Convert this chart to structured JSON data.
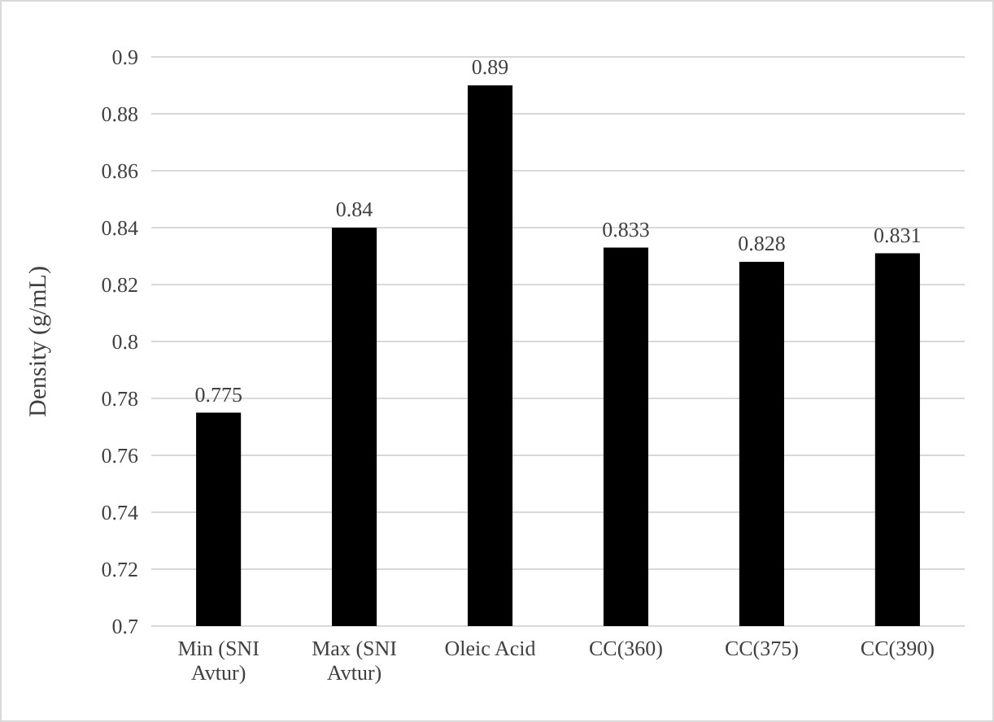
{
  "chart_data": {
    "type": "bar",
    "ylabel": "Density (g/mL)",
    "categories": [
      "Min (SNI Avtur)",
      "Max (SNI Avtur)",
      "Oleic Acid",
      "CC(360)",
      "CC(375)",
      "CC(390)"
    ],
    "values": [
      0.775,
      0.84,
      0.89,
      0.833,
      0.828,
      0.831
    ],
    "color": "#000000",
    "ylim": [
      0.7,
      0.9
    ],
    "yticks": [
      0.7,
      0.72,
      0.74,
      0.76,
      0.78,
      0.8,
      0.82,
      0.84,
      0.86,
      0.88,
      0.9
    ],
    "grid": "y",
    "data_labels": true
  }
}
